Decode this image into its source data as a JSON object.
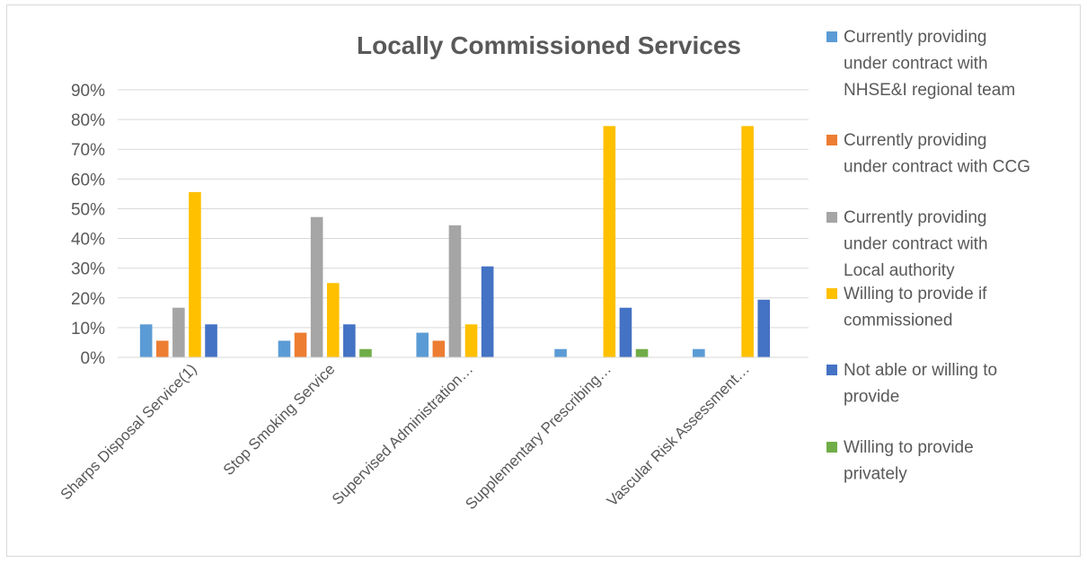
{
  "chart_data": {
    "type": "bar",
    "title": "Locally Commissioned Services",
    "xlabel": "",
    "ylabel": "",
    "ylim": [
      0,
      90
    ],
    "yticks": [
      "0%",
      "10%",
      "20%",
      "30%",
      "40%",
      "50%",
      "60%",
      "70%",
      "80%",
      "90%"
    ],
    "grid": true,
    "legend_position": "right",
    "categories": [
      "Sharps Disposal Service(1)",
      "Stop Smoking Service",
      "Supervised Administration…",
      "Supplementary Prescribing…",
      "Vascular Risk Assessment…"
    ],
    "series": [
      {
        "name": "Currently providing under contract with NHSE&I regional team",
        "legend_lines": [
          "Currently providing",
          "under contract with",
          "NHSE&I regional team"
        ],
        "color": "#5B9BD5",
        "values": [
          11.1,
          5.6,
          8.3,
          2.8,
          2.8
        ]
      },
      {
        "name": "Currently providing under contract with CCG",
        "legend_lines": [
          "Currently providing",
          "under contract with CCG"
        ],
        "color": "#ED7D31",
        "values": [
          5.6,
          8.3,
          5.6,
          0,
          0
        ]
      },
      {
        "name": "Currently providing under contract with Local authority",
        "legend_lines": [
          "Currently providing",
          "under contract with",
          "Local authority"
        ],
        "color": "#A5A5A5",
        "values": [
          16.7,
          47.2,
          44.4,
          0,
          0
        ]
      },
      {
        "name": "Willing to provide if commissioned",
        "legend_lines": [
          "Willing to provide if",
          "commissioned"
        ],
        "color": "#FFC000",
        "values": [
          55.6,
          25.0,
          11.1,
          77.8,
          77.8
        ]
      },
      {
        "name": "Not able or willing to provide",
        "legend_lines": [
          "Not able or willing to",
          "provide"
        ],
        "color": "#4472C4",
        "values": [
          11.1,
          11.1,
          30.6,
          16.7,
          19.4
        ]
      },
      {
        "name": "Willing to provide privately",
        "legend_lines": [
          "Willing to provide",
          "privately"
        ],
        "color": "#70AD47",
        "values": [
          0,
          2.8,
          0,
          2.8,
          0
        ]
      }
    ]
  }
}
